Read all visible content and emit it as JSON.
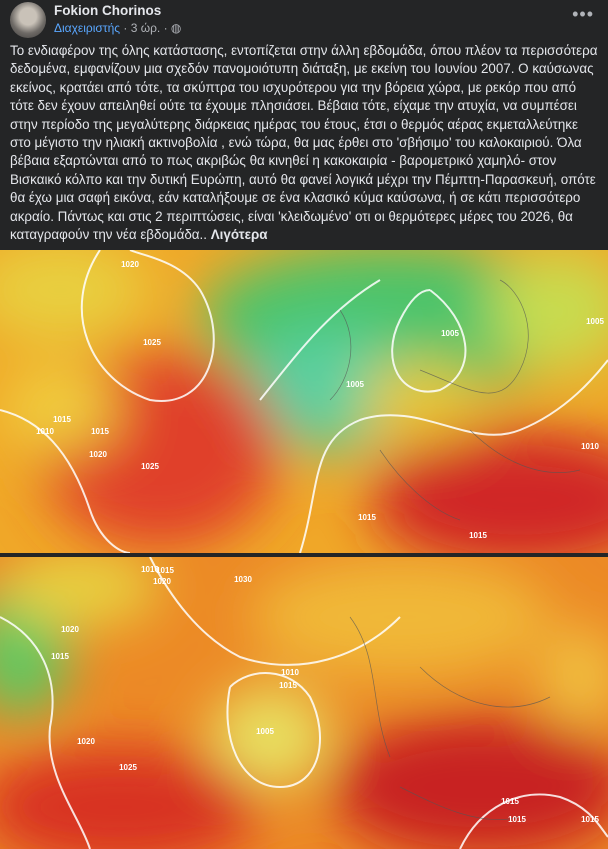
{
  "post": {
    "author": "Fokion Chorinos",
    "role": "Διαχειριστής",
    "time": "3 ώρ.",
    "text": "Το ενδιαφέρον της όλης κατάστασης, εντοπίζεται στην άλλη εβδομάδα, όπου πλέον τα περισσότερα δεδομένα, εμφανίζουν μια σχεδόν πανομοιότυπη διάταξη, με εκείνη του Ιουνίου 2007. Ο καύσωνας εκείνος, κρατάει από τότε, τα σκύπτρα του ισχυρότερου για την βόρεια χώρα, με ρεκόρ που από τότε δεν έχουν απειληθεί ούτε τα έχουμε πλησιάσει. Βέβαια τότε, είχαμε την ατυχία, να συμπέσει στην περίοδο της μεγαλύτερης διάρκειας ημέρας του έτους, έτσι ο θερμός αέρας εκμεταλλεύτηκε στο μέγιστο την ηλιακή ακτινοβολία ,  ενώ τώρα, θα μας έρθει στο 'σβήσιμο' του καλοκαιριού. Όλα βέβαια εξαρτώνται από το πως ακριβώς θα κινηθεί η κακοκαιρία - βαρομετρικό χαμηλό- στον Βισκαικό κόλπο και την δυτική Ευρώπη, αυτό θα φανεί λογικά μέχρι την Πέμπτη-Παρασκευή, οπότε θα έχω μια σαφή εικόνα, εάν καταλήξουμε σε ένα κλασικό κύμα καύσωνα, ή σε κάτι περισσότερο ακραίο. Πάντως και στις 2 περιπτώσεις, είναι 'κλειδωμένο' οτι οι θερμότερες μέρες του 2026, θα καταγραφούν την νέα εβδομάδα..",
    "see_less": "Λιγότερα"
  },
  "maps": [
    {
      "labels": [
        "1020",
        "1025",
        "1015",
        "1010",
        "1015",
        "1020",
        "1025",
        "1005",
        "1005",
        "1005",
        "1010",
        "1015",
        "1015"
      ]
    },
    {
      "labels": [
        "1010",
        "1015",
        "1020",
        "1030",
        "1020",
        "1015",
        "1010",
        "1015",
        "1005",
        "1020",
        "1025",
        "1015",
        "1015",
        "1015"
      ]
    }
  ]
}
